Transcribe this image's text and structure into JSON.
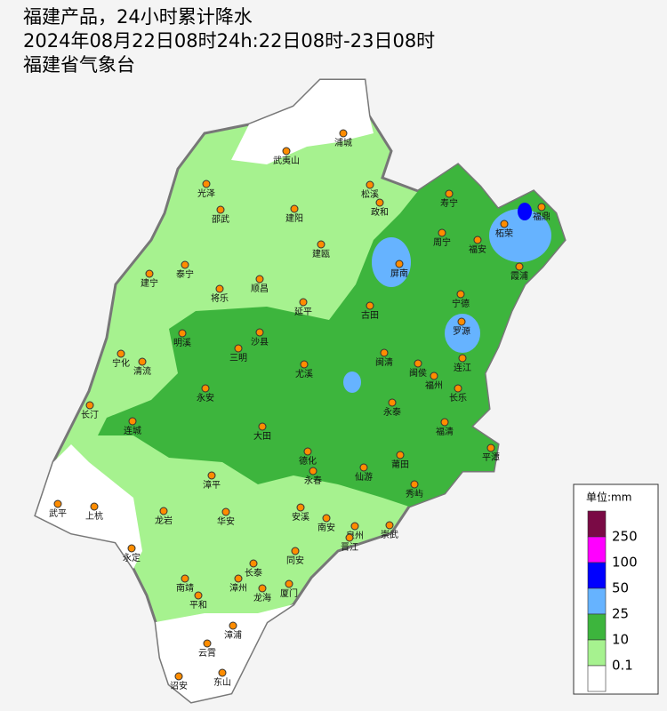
{
  "header": {
    "lines": [
      "福建产品，24小时累计降水",
      "2024年08月22日08时24h:22日08时-23日08时",
      "福建省气象台"
    ]
  },
  "legend": {
    "unit": "单位:mm",
    "colors": [
      "#7a0a45",
      "#ff00ff",
      "#0000ff",
      "#66b3ff",
      "#3db53d",
      "#a6f28f",
      "#ffffff"
    ],
    "labels": [
      "250",
      "100",
      "50",
      "25",
      "10",
      "0.1"
    ]
  },
  "cities": [
    "浦城",
    "武夷山",
    "光泽",
    "松溪",
    "寿宁",
    "政和",
    "邵武",
    "建阳",
    "福鼎",
    "柘荣",
    "周宁",
    "福安",
    "建瓯",
    "泰宁",
    "建宁",
    "屏南",
    "霞浦",
    "顺昌",
    "将乐",
    "延平",
    "宁德",
    "古田",
    "罗源",
    "明溪",
    "沙县",
    "三明",
    "宁化",
    "清流",
    "尤溪",
    "闽清",
    "闽侯",
    "连江",
    "福州",
    "长乐",
    "永安",
    "长汀",
    "永泰",
    "连城",
    "大田",
    "福清",
    "平潭",
    "莆田",
    "德化",
    "永春",
    "仙游",
    "漳平",
    "秀屿",
    "武平",
    "上杭",
    "龙岩",
    "华安",
    "安溪",
    "南安",
    "泉州",
    "崇武",
    "晋江",
    "永定",
    "同安",
    "长泰",
    "南靖",
    "漳州",
    "厦门",
    "龙海",
    "平和",
    "漳浦",
    "云霄",
    "诏安",
    "东山"
  ]
}
